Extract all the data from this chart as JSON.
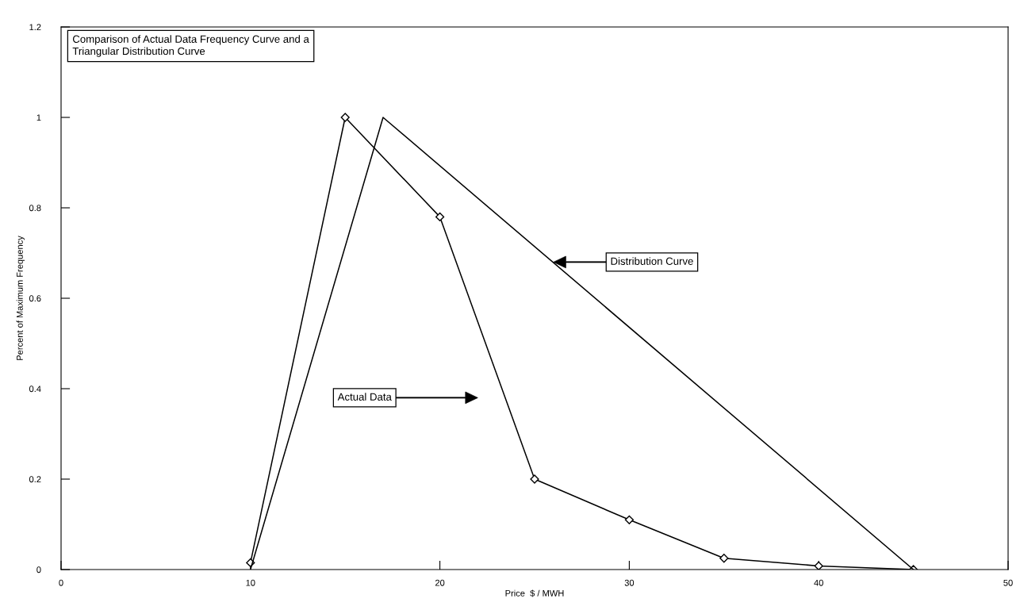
{
  "chart_data": {
    "type": "line",
    "title": "Comparison of Actual Data Frequency Curve and a\nTriangular Distribution Curve",
    "xlabel": "Price  $ / MWH",
    "ylabel": "Percent of Maximum Frequency",
    "xlim": [
      0,
      50
    ],
    "xticks": [
      0,
      10,
      20,
      30,
      40,
      50
    ],
    "ylim": [
      0,
      1.2
    ],
    "yticks": [
      0,
      0.2,
      0.4,
      0.6,
      0.8,
      1,
      1.2
    ],
    "grid": false,
    "legend": false,
    "series": [
      {
        "color": "#000000",
        "marker": "diamond",
        "x": [
          10,
          15,
          20,
          25,
          30,
          35,
          40,
          45
        ],
        "values": [
          0.015,
          1.0,
          0.78,
          0.2,
          0.11,
          0.025,
          0.008,
          0
        ]
      },
      {
        "color": "#000000",
        "marker": "none",
        "x": [
          10,
          17,
          45
        ],
        "values": [
          0,
          1.0,
          0
        ]
      }
    ],
    "annotations": [
      "Actual Data",
      "Distribution Curve"
    ]
  }
}
